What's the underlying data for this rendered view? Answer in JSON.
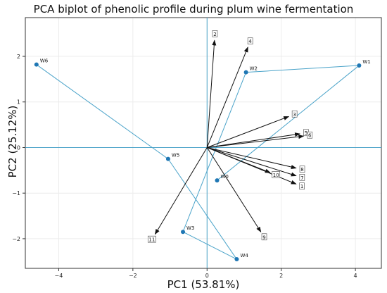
{
  "chart_data": {
    "type": "scatter",
    "title": "PCA biplot of phenolic profile during plum wine fermentation",
    "xlabel": "PC1 (53.81%)",
    "ylabel": "PC2 (25.12%)",
    "xlim": [
      -4.9,
      4.7
    ],
    "ylim": [
      -2.65,
      2.85
    ],
    "xticks": [
      -4,
      -2,
      0,
      2,
      4
    ],
    "yticks": [
      -2,
      -1,
      0,
      1,
      2
    ],
    "grid": true,
    "colors": {
      "samples": "#1f77b4",
      "sample_lines": "#4aa3c9",
      "arrows": "#111111",
      "axes_lines": "#4aa3c9"
    },
    "samples": [
      {
        "label": "W0",
        "x": 0.27,
        "y": -0.72
      },
      {
        "label": "W1",
        "x": 4.1,
        "y": 1.8
      },
      {
        "label": "W2",
        "x": 1.05,
        "y": 1.65
      },
      {
        "label": "W3",
        "x": -0.65,
        "y": -1.85
      },
      {
        "label": "W4",
        "x": 0.8,
        "y": -2.45
      },
      {
        "label": "W5",
        "x": -1.05,
        "y": -0.25
      },
      {
        "label": "W6",
        "x": -4.6,
        "y": 1.82
      }
    ],
    "sample_path": [
      "W6",
      "W5",
      "W4",
      "W3",
      "W2",
      "W1",
      "W0"
    ],
    "loadings": [
      {
        "label": "1",
        "x": 2.4,
        "y": -0.8
      },
      {
        "label": "2",
        "x": 0.2,
        "y": 2.35
      },
      {
        "label": "3",
        "x": 2.2,
        "y": 0.68
      },
      {
        "label": "4",
        "x": 1.1,
        "y": 2.2
      },
      {
        "label": "5",
        "x": 2.5,
        "y": 0.3
      },
      {
        "label": "6",
        "x": 2.6,
        "y": 0.25
      },
      {
        "label": "7",
        "x": 2.4,
        "y": -0.62
      },
      {
        "label": "8",
        "x": 2.4,
        "y": -0.45
      },
      {
        "label": "9",
        "x": 1.45,
        "y": -1.85
      },
      {
        "label": "10",
        "x": 1.7,
        "y": -0.55
      },
      {
        "label": "11",
        "x": -1.4,
        "y": -1.9
      }
    ]
  }
}
